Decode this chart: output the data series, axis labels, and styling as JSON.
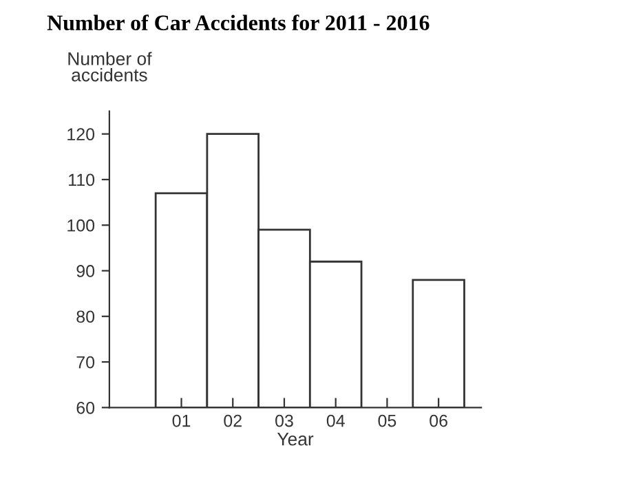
{
  "chart_data": {
    "type": "bar",
    "title": "Number of Car Accidents for 2011 - 2016",
    "xlabel": "Year",
    "ylabel": "Number of\naccidents",
    "categories": [
      "01",
      "02",
      "03",
      "04",
      "05",
      "06"
    ],
    "values": [
      107,
      120,
      99,
      92,
      null,
      88
    ],
    "color": "#ffffff",
    "ylim": [
      60,
      125
    ],
    "yticks": [
      60,
      70,
      80,
      90,
      100,
      110,
      120
    ],
    "grid": false
  }
}
